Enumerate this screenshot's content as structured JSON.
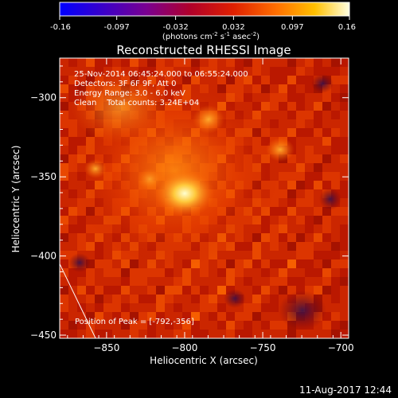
{
  "colorbar": {
    "ticks": [
      "-0.16",
      "-0.097",
      "-0.032",
      "0.032",
      "0.097",
      "0.16"
    ],
    "tick_values": [
      -0.16,
      -0.097,
      -0.032,
      0.032,
      0.097,
      0.16
    ],
    "range": [
      -0.16,
      0.16
    ],
    "units_text": "(photons cm",
    "units_sup1": "-2",
    "units_mid1": " s",
    "units_sup2": "-1",
    "units_mid2": " asec",
    "units_sup3": "-2",
    "units_end": ")",
    "colormap": "blue-purple-red-orange-yellow-white"
  },
  "chart_data": {
    "type": "heatmap",
    "title": "Reconstructed RHESSI Image",
    "xlabel": "Heliocentric X (arcsec)",
    "ylabel": "Heliocentric Y (arcsec)",
    "xlim": [
      -880,
      -695
    ],
    "ylim": [
      -452,
      -275
    ],
    "x_ticks": [
      -850,
      -800,
      -750,
      -700
    ],
    "y_ticks": [
      -300,
      -350,
      -400,
      -450
    ],
    "x_tick_labels": [
      "−850",
      "−800",
      "−750",
      "−700"
    ],
    "y_tick_labels": [
      "−300",
      "−350",
      "−400",
      "−450"
    ],
    "peak": [
      -792,
      -356
    ],
    "annotations": [
      "25-Nov-2014 06:45:24.000 to 06:55:24.000",
      "Detectors: 3F 6F 9F, Att 0",
      "Energy Range: 3.0 - 6.0 keV",
      "Clean    Total counts: 3.24E+04"
    ],
    "peak_label": "Position of Peak = [-792,-356]",
    "limb_line": {
      "x": [
        -880,
        -857
      ],
      "y": [
        -405,
        -452
      ]
    }
  },
  "footer": {
    "date": "11-Aug-2017 12:44"
  }
}
